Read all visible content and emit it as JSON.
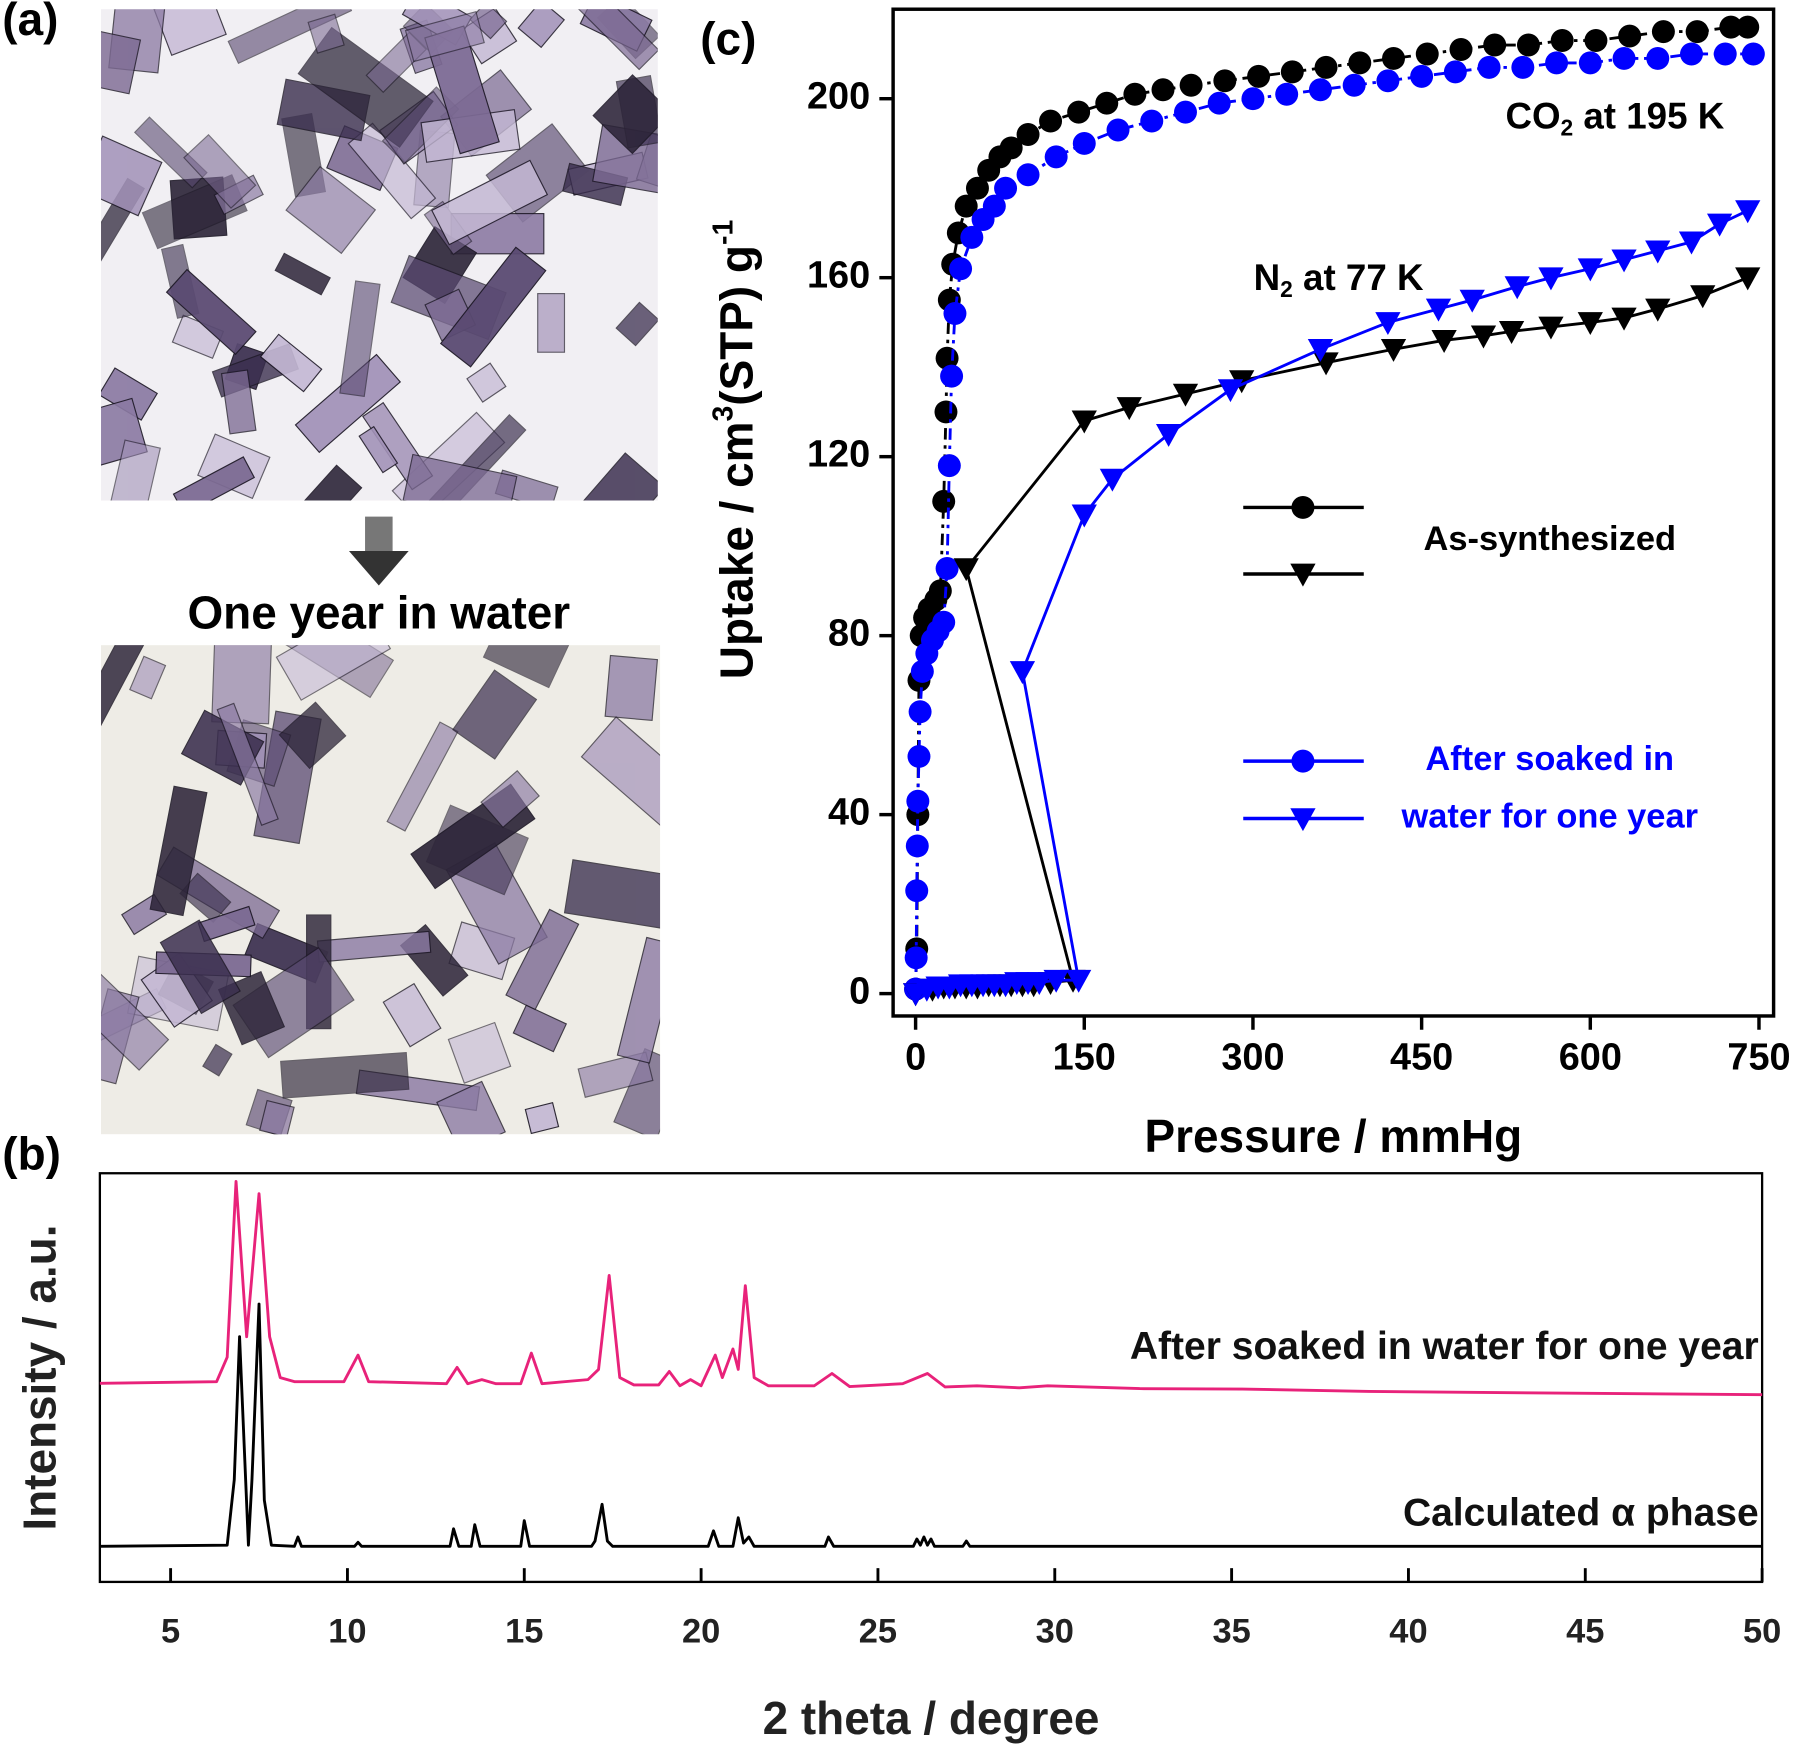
{
  "panel_a": {
    "label": "(a)",
    "caption": "One year in water"
  },
  "chart_data": [
    {
      "type": "scatter",
      "panel_label": "(c)",
      "xlabel": "Pressure / mmHg",
      "ylabel": [
        {
          "text": "Uptake / cm"
        },
        {
          "text": "3",
          "sup": true
        },
        {
          "text": "(STP) g"
        },
        {
          "text": "-1",
          "sup": true
        }
      ],
      "xlim": [
        -20,
        763
      ],
      "ylim": [
        -5,
        220
      ],
      "xticks": [
        0,
        150,
        300,
        450,
        600,
        750
      ],
      "yticks": [
        0,
        40,
        80,
        120,
        160,
        200
      ],
      "series": [
        {
          "marker": "circle",
          "color": "#000000",
          "dash": true,
          "x": [
            0,
            1,
            2,
            3,
            5,
            8,
            12,
            18,
            22,
            25,
            27,
            28,
            30,
            33,
            38,
            45,
            55,
            65,
            75,
            85,
            100,
            120,
            145,
            170,
            195,
            220,
            245,
            275,
            305,
            335,
            365,
            395,
            425,
            455,
            485,
            515,
            545,
            575,
            605,
            635,
            665,
            695,
            725,
            740
          ],
          "values": [
            1,
            10,
            40,
            70,
            80,
            84,
            86,
            88,
            90,
            110,
            130,
            142,
            155,
            163,
            170,
            176,
            180,
            184,
            187,
            189,
            192,
            195,
            197,
            199,
            201,
            202,
            203,
            204,
            205,
            206,
            207,
            208,
            209,
            210,
            211,
            212,
            212,
            213,
            213,
            214,
            215,
            215,
            216,
            216
          ]
        },
        {
          "marker": "circle",
          "color": "#0000ff",
          "dash": true,
          "x": [
            0,
            0.5,
            1,
            1.5,
            2,
            3,
            4,
            6,
            10,
            15,
            20,
            25,
            28,
            30,
            32,
            35,
            40,
            50,
            60,
            70,
            80,
            100,
            125,
            150,
            180,
            210,
            240,
            270,
            300,
            330,
            360,
            390,
            420,
            450,
            480,
            510,
            540,
            570,
            600,
            630,
            660,
            690,
            720,
            745
          ],
          "values": [
            1,
            8,
            23,
            33,
            43,
            53,
            63,
            72,
            76,
            79,
            81,
            83,
            95,
            118,
            138,
            152,
            162,
            169,
            173,
            176,
            180,
            183,
            187,
            190,
            193,
            195,
            197,
            199,
            200,
            201,
            202,
            203,
            204,
            205,
            206,
            207,
            207,
            208,
            208,
            209,
            209,
            210,
            210,
            210
          ]
        },
        {
          "marker": "triangle",
          "color": "#000000",
          "dash": false,
          "x": [
            0,
            15,
            25,
            35,
            45,
            55,
            65,
            75,
            85,
            95,
            105,
            120,
            140,
            45,
            150,
            190,
            240,
            290,
            365,
            425,
            470,
            505,
            530,
            565,
            600,
            630,
            660,
            700,
            740
          ],
          "values": [
            0,
            1,
            1.5,
            1.5,
            1.5,
            1.5,
            2,
            2,
            2,
            2,
            2,
            2.5,
            3,
            95,
            128,
            131,
            134,
            137,
            141,
            144,
            146,
            147,
            148,
            149,
            150,
            151,
            153,
            156,
            160
          ]
        },
        {
          "marker": "triangle",
          "color": "#0000ff",
          "dash": false,
          "x": [
            0,
            10,
            20,
            30,
            40,
            50,
            60,
            70,
            80,
            90,
            100,
            110,
            125,
            145,
            95,
            150,
            175,
            225,
            280,
            360,
            420,
            465,
            495,
            535,
            565,
            600,
            630,
            660,
            690,
            715,
            740
          ],
          "values": [
            0,
            1,
            1.5,
            1.5,
            2,
            2,
            2,
            2,
            2,
            2.5,
            2.5,
            2.5,
            3,
            3,
            72,
            107,
            115,
            125,
            135,
            144,
            150,
            153,
            155,
            158,
            160,
            162,
            164,
            166,
            168,
            172,
            175
          ]
        }
      ],
      "legend": [
        {
          "label": [
            "As-synthesized"
          ],
          "color": "#000000"
        },
        {
          "label": [
            "After soaked in",
            "water for one year"
          ],
          "color": "#0000ff"
        }
      ],
      "annotations": [
        {
          "parts": [
            {
              "text": "CO"
            },
            {
              "text": "2",
              "sub": true
            },
            {
              "text": " at 195 K"
            }
          ]
        },
        {
          "parts": [
            {
              "text": "N"
            },
            {
              "text": "2",
              "sub": true
            },
            {
              "text": " at 77 K"
            }
          ]
        }
      ]
    },
    {
      "type": "line",
      "panel_label": "(b)",
      "xlabel": "2 theta / degree",
      "ylabel": "Intensity / a.u.",
      "xlim": [
        3,
        50
      ],
      "ylim": [
        0,
        100
      ],
      "xticks": [
        5,
        10,
        15,
        20,
        25,
        30,
        35,
        40,
        45,
        50
      ],
      "series": [
        {
          "name": "After soaked in water for one year",
          "color": "#e8227a",
          "x": [
            3,
            6.3,
            6.6,
            6.85,
            7.15,
            7.5,
            7.8,
            8.1,
            8.5,
            9.9,
            10.3,
            10.6,
            12.8,
            13.1,
            13.4,
            13.8,
            14.2,
            14.9,
            15.2,
            15.5,
            16.8,
            17.1,
            17.4,
            17.7,
            18.1,
            18.8,
            19.1,
            19.4,
            19.7,
            20,
            20.4,
            20.6,
            20.9,
            21.05,
            21.25,
            21.5,
            21.9,
            23.2,
            23.7,
            24.2,
            25.7,
            26.4,
            26.9,
            27.8,
            29,
            29.8,
            32.4,
            35.3,
            38.9,
            50
          ],
          "values": [
            48.6,
            49,
            55,
            98,
            60,
            95,
            60,
            50,
            49,
            49,
            55.5,
            49,
            48.5,
            52.5,
            48.5,
            49.5,
            48.5,
            48.5,
            56,
            48.5,
            49.5,
            52,
            75,
            50,
            48.2,
            48.2,
            51.5,
            48,
            49.5,
            48,
            55.5,
            50,
            57,
            52,
            72.5,
            50,
            48,
            48,
            51,
            47.8,
            48.5,
            51,
            47.7,
            48,
            47.5,
            48,
            47.3,
            47.2,
            46.6,
            45.8
          ]
        },
        {
          "name": "Calculated α phase",
          "color": "#000000",
          "x": [
            3,
            6.6,
            6.8,
            6.95,
            7.2,
            7.3,
            7.5,
            7.65,
            7.85,
            8.5,
            8.6,
            8.7,
            10.2,
            10.3,
            10.4,
            12.9,
            13,
            13.15,
            13.5,
            13.6,
            13.75,
            14.9,
            15,
            15.15,
            16.9,
            17,
            17.2,
            17.35,
            17.5,
            20.2,
            20.35,
            20.5,
            20.9,
            21.05,
            21.2,
            21.35,
            21.5,
            23.5,
            23.6,
            23.75,
            26,
            26.1,
            26.2,
            26.3,
            26.4,
            26.5,
            26.6,
            27.4,
            27.5,
            27.6,
            50
          ],
          "values": [
            8.7,
            9,
            25,
            60,
            9,
            25,
            68,
            20,
            9,
            8.7,
            11,
            8.7,
            8.7,
            9.7,
            8.7,
            8.7,
            13,
            8.7,
            8.7,
            14,
            8.7,
            8.7,
            15,
            8.7,
            8.7,
            10,
            19,
            10,
            8.7,
            8.7,
            12.5,
            8.7,
            8.7,
            15.7,
            9.5,
            11,
            8.7,
            8.7,
            11,
            8.7,
            8.7,
            10.5,
            9,
            11,
            9,
            10.5,
            8.7,
            8.7,
            10,
            8.7,
            8.7
          ]
        }
      ]
    }
  ]
}
